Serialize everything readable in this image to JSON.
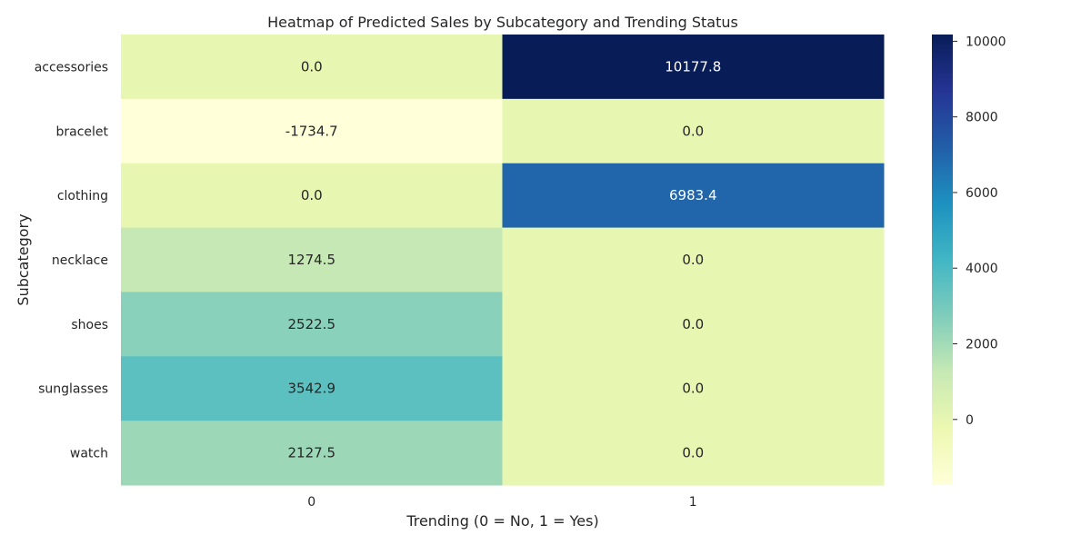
{
  "chart_data": {
    "type": "heatmap",
    "title": "Heatmap of Predicted Sales by Subcategory and Trending Status",
    "xlabel": "Trending (0 = No, 1 = Yes)",
    "ylabel": "Subcategory",
    "x_categories": [
      "0",
      "1"
    ],
    "y_categories": [
      "accessories",
      "bracelet",
      "clothing",
      "necklace",
      "shoes",
      "sunglasses",
      "watch"
    ],
    "values": [
      [
        0.0,
        10177.8
      ],
      [
        -1734.7,
        0.0
      ],
      [
        0.0,
        6983.4
      ],
      [
        1274.5,
        0.0
      ],
      [
        2522.5,
        0.0
      ],
      [
        3542.9,
        0.0
      ],
      [
        2127.5,
        0.0
      ]
    ],
    "value_labels": [
      [
        "0.0",
        "10177.8"
      ],
      [
        "-1734.7",
        "0.0"
      ],
      [
        "0.0",
        "6983.4"
      ],
      [
        "1274.5",
        "0.0"
      ],
      [
        "2522.5",
        "0.0"
      ],
      [
        "3542.9",
        "0.0"
      ],
      [
        "2127.5",
        "0.0"
      ]
    ],
    "colorbar": {
      "colormap": "YlGnBu",
      "vmin": -1734.7,
      "vmax": 10177.8,
      "ticks": [
        0,
        2000,
        4000,
        6000,
        8000,
        10000
      ],
      "tick_labels": [
        "0",
        "2000",
        "4000",
        "6000",
        "8000",
        "10000"
      ]
    }
  }
}
